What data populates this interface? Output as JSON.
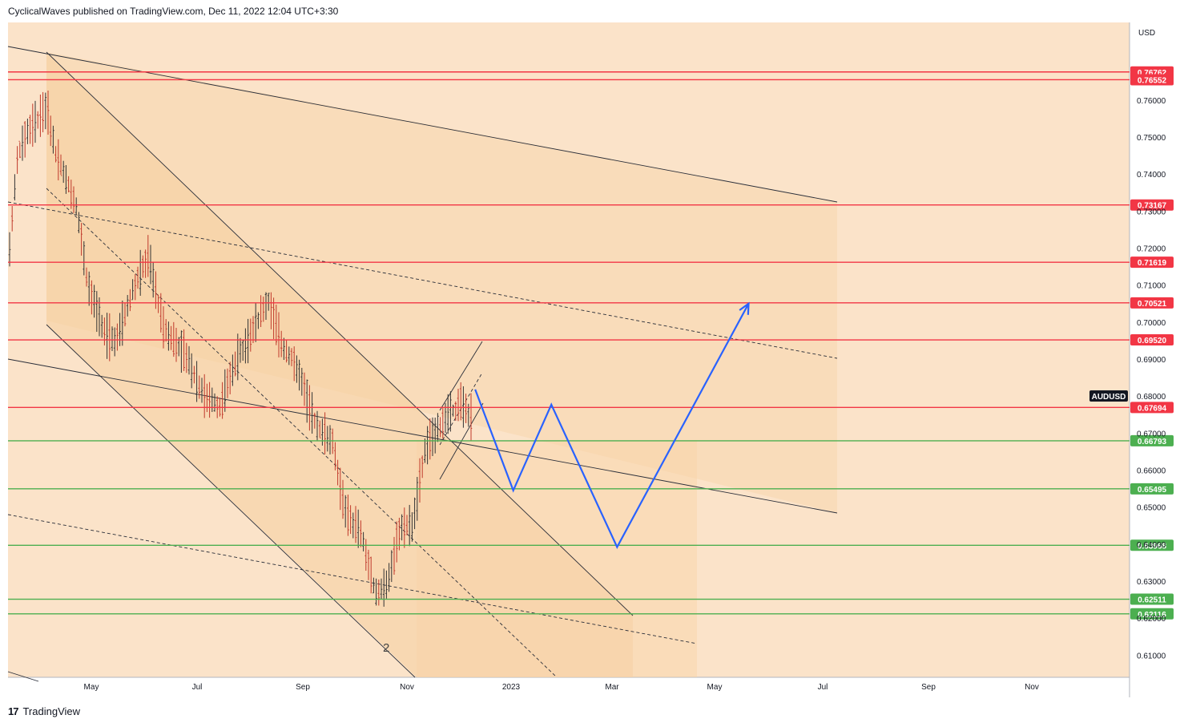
{
  "header": {
    "attribution": "CyclicalWaves published on TradingView.com, Dec 11, 2022 12:04 UTC+3:30"
  },
  "footer": {
    "logo_text": "TradingView"
  },
  "chart_data": {
    "type": "candlestick",
    "symbol": "AUDUSD",
    "currency": "USD",
    "x_ticks": [
      "May",
      "Jul",
      "Sep",
      "Nov",
      "2023",
      "Mar",
      "May",
      "Jul",
      "Sep",
      "Nov"
    ],
    "y_ticks": [
      0.61,
      0.62,
      0.63,
      0.64,
      0.65,
      0.66,
      0.67,
      0.68,
      0.69,
      0.7,
      0.71,
      0.72,
      0.73,
      0.74,
      0.75,
      0.76
    ],
    "y_tick_labels": [
      "0.61000",
      "0.62000",
      "0.63000",
      "0.64000",
      "0.65000",
      "0.66000",
      "0.67000",
      "0.68000",
      "0.69000",
      "0.70000",
      "0.71000",
      "0.72000",
      "0.73000",
      "0.74000",
      "0.75000",
      "0.76000"
    ],
    "ylim": [
      0.604,
      0.781
    ],
    "wave_label": "2",
    "resistance_levels": [
      {
        "value": 0.76762,
        "label": "0.76762"
      },
      {
        "value": 0.76552,
        "label": "0.76552"
      },
      {
        "value": 0.73167,
        "label": "0.73167"
      },
      {
        "value": 0.71619,
        "label": "0.71619"
      },
      {
        "value": 0.70521,
        "label": "0.70521"
      },
      {
        "value": 0.6952,
        "label": "0.69520"
      },
      {
        "value": 0.67694,
        "label": "0.67694"
      }
    ],
    "support_levels": [
      {
        "value": 0.66793,
        "label": "0.66793"
      },
      {
        "value": 0.65495,
        "label": "0.65495"
      },
      {
        "value": 0.63968,
        "label": "0.63968"
      },
      {
        "value": 0.62511,
        "label": "0.62511"
      },
      {
        "value": 0.62116,
        "label": "0.62116"
      }
    ],
    "projection_path": [
      {
        "date": "2022-12-08",
        "price": 0.6818
      },
      {
        "date": "2022-12-30",
        "price": 0.6545
      },
      {
        "date": "2023-01-21",
        "price": 0.6777
      },
      {
        "date": "2023-02-28",
        "price": 0.6392
      },
      {
        "date": "2023-05-15",
        "price": 0.705
      }
    ],
    "colors": {
      "resistance": "#f23645",
      "support": "#4caf50",
      "projection": "#2962ff",
      "candle": "#c0392b",
      "symbol_label_bg": "#131722"
    }
  }
}
